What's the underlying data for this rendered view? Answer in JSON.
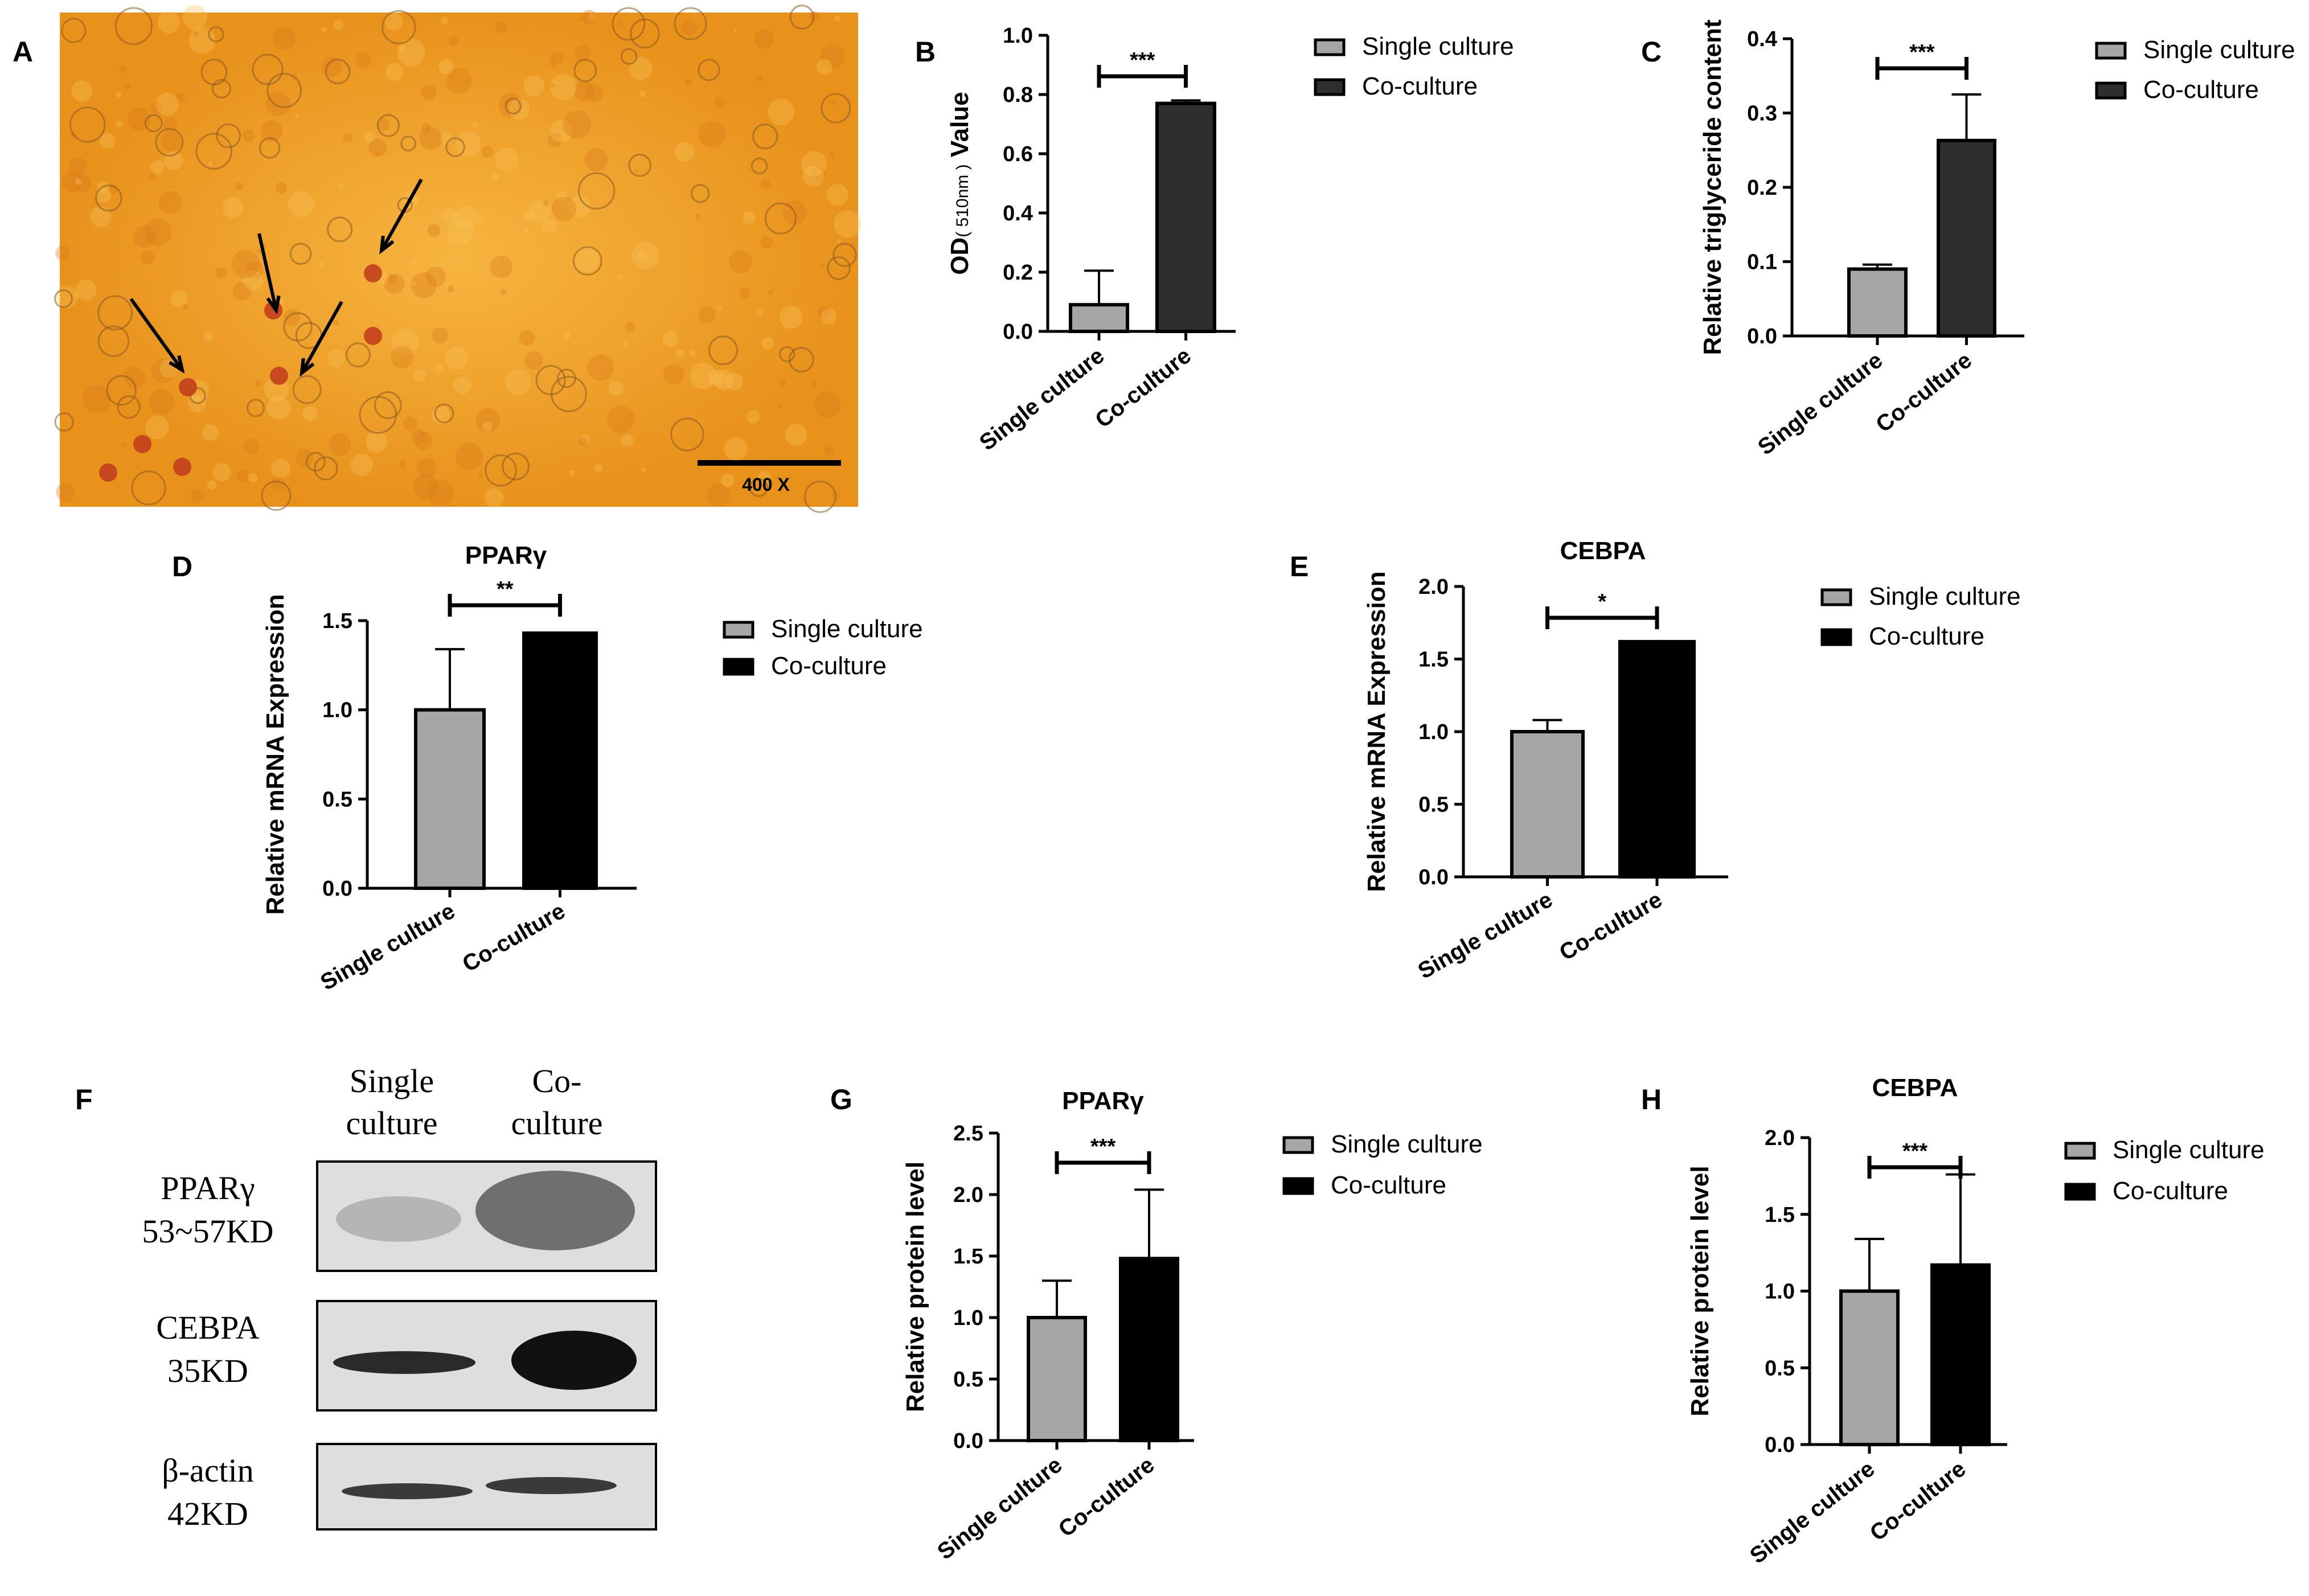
{
  "colors": {
    "single": "#a6a6a6",
    "co_dark": "#2e2e2e",
    "co_black": "#000000",
    "micro_bg": "#f0a227"
  },
  "legend": {
    "single": "Single culture",
    "co": "Co-culture"
  },
  "panelA": {
    "letter": "A",
    "scale_label": "400 X"
  },
  "panelF": {
    "letter": "F",
    "lane_labels": [
      [
        "Single",
        "culture"
      ],
      [
        "Co-",
        "culture"
      ]
    ],
    "bands": [
      {
        "name": [
          "PPARγ",
          "53~57KD"
        ]
      },
      {
        "name": [
          "CEBPA",
          "35KD"
        ]
      },
      {
        "name": [
          "β-actin",
          "42KD"
        ]
      }
    ]
  },
  "chart_data": [
    {
      "id": "B",
      "type": "bar",
      "title": "",
      "ylabel_main": "OD",
      "ylabel_sub": "( 510nm )",
      "ylabel_end": " Value",
      "categories": [
        "Single culture",
        "Co-culture"
      ],
      "values": [
        0.09,
        0.77
      ],
      "errors": [
        0.115,
        0.01
      ],
      "ylim": [
        0,
        1.0
      ],
      "ticks": [
        "0.0",
        "0.2",
        "0.4",
        "0.6",
        "0.8",
        "1.0"
      ],
      "tick_values": [
        0,
        0.2,
        0.4,
        0.6,
        0.8,
        1.0
      ],
      "significance": "***",
      "co_color": "co_dark",
      "legend_position": "top-right"
    },
    {
      "id": "C",
      "type": "bar",
      "title": "",
      "ylabel": "Relative triglyceride content",
      "categories": [
        "Single culture",
        "Co-culture"
      ],
      "values": [
        0.09,
        0.263
      ],
      "errors": [
        0.006,
        0.062
      ],
      "ylim": [
        0,
        0.4
      ],
      "ticks": [
        "0.0",
        "0.1",
        "0.2",
        "0.3",
        "0.4"
      ],
      "tick_values": [
        0,
        0.1,
        0.2,
        0.3,
        0.4
      ],
      "significance": "***",
      "co_color": "co_dark",
      "legend_position": "top-right"
    },
    {
      "id": "D",
      "type": "bar",
      "title": "PPARγ",
      "ylabel": "Relative mRNA Expression",
      "categories": [
        "Single culture",
        "Co-culture"
      ],
      "values": [
        1.0,
        1.43
      ],
      "errors": [
        0.34,
        0.0
      ],
      "ylim": [
        0,
        1.5
      ],
      "ticks": [
        "0.0",
        "0.5",
        "1.0",
        "1.5"
      ],
      "tick_values": [
        0,
        0.5,
        1.0,
        1.5
      ],
      "significance": "**",
      "co_color": "co_black",
      "legend_position": "top-right"
    },
    {
      "id": "E",
      "type": "bar",
      "title": "CEBPA",
      "ylabel": "Relative mRNA Expression",
      "categories": [
        "Single culture",
        "Co-culture"
      ],
      "values": [
        1.0,
        1.62
      ],
      "errors": [
        0.08,
        0.0
      ],
      "ylim": [
        0,
        2.0
      ],
      "ticks": [
        "0.0",
        "0.5",
        "1.0",
        "1.5",
        "2.0"
      ],
      "tick_values": [
        0,
        0.5,
        1.0,
        1.5,
        2.0
      ],
      "significance": "*",
      "co_color": "co_black",
      "legend_position": "top-right"
    },
    {
      "id": "G",
      "type": "bar",
      "title": "PPARγ",
      "ylabel": "Relative protein level",
      "categories": [
        "Single culture",
        "Co-culture"
      ],
      "values": [
        1.0,
        1.48
      ],
      "errors": [
        0.3,
        0.56
      ],
      "ylim": [
        0,
        2.5
      ],
      "ticks": [
        "0.0",
        "0.5",
        "1.0",
        "1.5",
        "2.0",
        "2.5"
      ],
      "tick_values": [
        0,
        0.5,
        1.0,
        1.5,
        2.0,
        2.5
      ],
      "significance": "***",
      "co_color": "co_black",
      "legend_position": "top-right"
    },
    {
      "id": "H",
      "type": "bar",
      "title": "CEBPA",
      "ylabel": "Relative protein level",
      "categories": [
        "Single culture",
        "Co-culture"
      ],
      "values": [
        1.0,
        1.17
      ],
      "errors": [
        0.34,
        0.59
      ],
      "ylim": [
        0,
        2.0
      ],
      "ticks": [
        "0.0",
        "0.5",
        "1.0",
        "1.5",
        "2.0"
      ],
      "tick_values": [
        0,
        0.5,
        1.0,
        1.5,
        2.0
      ],
      "significance": "***",
      "co_color": "co_black",
      "legend_position": "top-right"
    }
  ]
}
